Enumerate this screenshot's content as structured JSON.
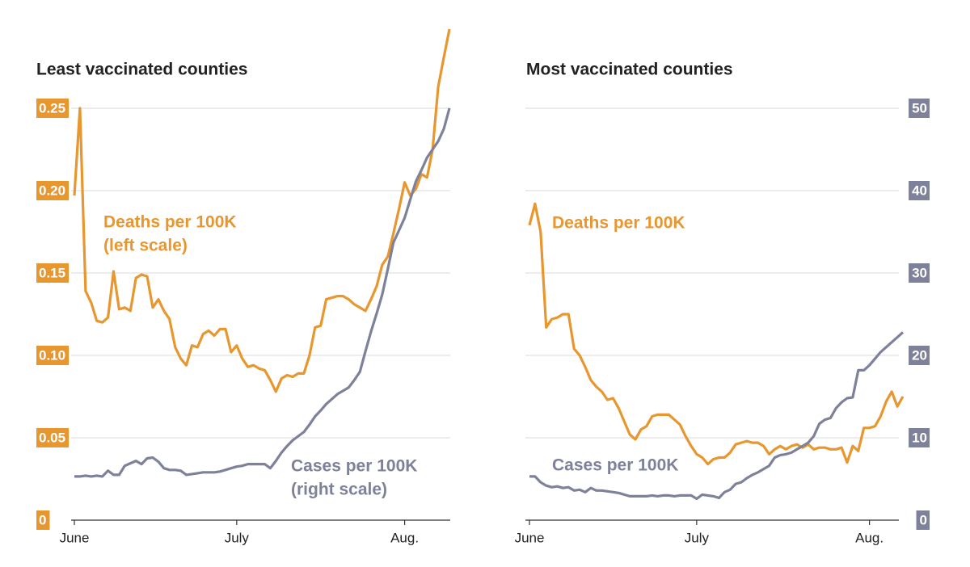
{
  "chart_data": [
    {
      "type": "line",
      "title": "Least vaccinated counties",
      "categories": [
        "June",
        null,
        null,
        null,
        null,
        null,
        null,
        null,
        null,
        null,
        null,
        null,
        null,
        null,
        null,
        null,
        null,
        null,
        null,
        null,
        null,
        null,
        null,
        null,
        null,
        null,
        null,
        null,
        null,
        "July",
        null,
        null,
        null,
        null,
        null,
        null,
        null,
        null,
        null,
        null,
        null,
        null,
        null,
        null,
        null,
        null,
        null,
        null,
        null,
        null,
        null,
        null,
        null,
        null,
        null,
        null,
        null,
        null,
        null,
        "Aug.",
        null,
        null,
        null,
        null,
        null,
        null,
        null,
        null
      ],
      "series": [
        {
          "name": "Deaths per 100K",
          "note": "(left scale)",
          "color": "#e8962e",
          "axis": "y",
          "values": [
            0.197,
            0.25,
            0.139,
            0.132,
            0.121,
            0.12,
            0.123,
            0.151,
            0.128,
            0.129,
            0.127,
            0.147,
            0.149,
            0.148,
            0.129,
            0.134,
            0.127,
            0.122,
            0.105,
            0.098,
            0.094,
            0.106,
            0.105,
            0.113,
            0.115,
            0.112,
            0.116,
            0.116,
            0.102,
            0.106,
            0.098,
            0.093,
            0.094,
            0.092,
            0.091,
            0.085,
            0.078,
            0.086,
            0.088,
            0.087,
            0.089,
            0.089,
            0.1,
            0.117,
            0.118,
            0.134,
            0.135,
            0.136,
            0.136,
            0.134,
            0.131,
            0.129,
            0.127,
            0.134,
            0.142,
            0.155,
            0.16,
            0.174,
            0.189,
            0.205,
            0.197,
            0.201,
            0.21,
            0.208,
            0.225,
            0.263,
            0.281,
            0.298
          ]
        },
        {
          "name": "Cases per 100K",
          "note": "(right scale)",
          "color": "#7d8199",
          "axis": "y2",
          "values": [
            5.3,
            5.3,
            5.4,
            5.3,
            5.4,
            5.3,
            6.0,
            5.5,
            5.5,
            6.6,
            6.9,
            7.2,
            6.8,
            7.5,
            7.6,
            7.1,
            6.3,
            6.1,
            6.1,
            6.0,
            5.5,
            5.6,
            5.7,
            5.8,
            5.8,
            5.8,
            5.9,
            6.1,
            6.3,
            6.5,
            6.6,
            6.8,
            6.8,
            6.8,
            6.8,
            6.3,
            7.2,
            8.2,
            9.0,
            9.7,
            10.2,
            10.7,
            11.6,
            12.6,
            13.3,
            14.1,
            14.7,
            15.3,
            15.7,
            16.1,
            17.0,
            18.0,
            20.5,
            22.9,
            25.1,
            27.4,
            30.5,
            33.7,
            35.2,
            36.7,
            38.9,
            41.1,
            42.5,
            44.0,
            45.0,
            46.0,
            47.5,
            50.0
          ]
        }
      ],
      "ylim": [
        0,
        0.3
      ],
      "yticks": [
        0,
        0.05,
        {
          "value": 0.1,
          "label": "0.10"
        },
        0.15,
        {
          "value": 0.2,
          "label": "0.20"
        },
        0.25
      ],
      "y2lim": [
        0,
        60
      ],
      "grid": true
    },
    {
      "type": "line",
      "title": "Most vaccinated counties",
      "categories": [
        "June",
        null,
        null,
        null,
        null,
        null,
        null,
        null,
        null,
        null,
        null,
        null,
        null,
        null,
        null,
        null,
        null,
        null,
        null,
        null,
        null,
        null,
        null,
        null,
        null,
        null,
        null,
        null,
        null,
        null,
        "July",
        null,
        null,
        null,
        null,
        null,
        null,
        null,
        null,
        null,
        null,
        null,
        null,
        null,
        null,
        null,
        null,
        null,
        null,
        null,
        null,
        null,
        null,
        null,
        null,
        null,
        null,
        null,
        null,
        null,
        null,
        "Aug.",
        null,
        null,
        null,
        null,
        null,
        null
      ],
      "series": [
        {
          "name": "Deaths per 100K",
          "color": "#e8962e",
          "axis": "y",
          "values": [
            0.179,
            0.192,
            0.175,
            0.117,
            0.122,
            0.123,
            0.125,
            0.125,
            0.104,
            0.1,
            0.093,
            0.085,
            0.081,
            0.078,
            0.073,
            0.074,
            0.068,
            0.06,
            0.052,
            0.049,
            0.055,
            0.057,
            0.063,
            0.064,
            0.064,
            0.064,
            0.061,
            0.058,
            0.051,
            0.045,
            0.04,
            0.038,
            0.034,
            0.037,
            0.038,
            0.038,
            0.041,
            0.046,
            0.047,
            0.048,
            0.047,
            0.047,
            0.045,
            0.04,
            0.043,
            0.045,
            0.043,
            0.045,
            0.046,
            0.044,
            0.046,
            0.043,
            0.044,
            0.044,
            0.043,
            0.043,
            0.044,
            0.035,
            0.045,
            0.042,
            0.056,
            0.056,
            0.057,
            0.063,
            0.072,
            0.078,
            0.069,
            0.075
          ]
        },
        {
          "name": "Cases per 100K",
          "color": "#7d8199",
          "axis": "y2",
          "values": [
            5.3,
            5.3,
            4.6,
            4.2,
            4.0,
            4.1,
            3.9,
            4.0,
            3.6,
            3.7,
            3.4,
            3.9,
            3.6,
            3.6,
            3.5,
            3.4,
            3.3,
            3.1,
            2.9,
            2.9,
            2.9,
            2.9,
            3.0,
            2.9,
            3.0,
            3.0,
            2.9,
            3.0,
            3.0,
            3.0,
            2.6,
            3.1,
            3.0,
            2.9,
            2.7,
            3.4,
            3.7,
            4.4,
            4.6,
            5.1,
            5.5,
            5.8,
            6.2,
            6.6,
            7.6,
            7.9,
            8.0,
            8.2,
            8.6,
            9.0,
            9.4,
            10.2,
            11.7,
            12.2,
            12.4,
            13.6,
            14.3,
            14.8,
            14.9,
            18.2,
            18.2,
            18.8,
            19.6,
            20.4,
            21.0,
            21.6,
            22.2,
            22.8
          ]
        }
      ],
      "ylim": [
        0,
        0.3
      ],
      "y2lim": [
        0,
        60
      ],
      "y2ticks": [
        0,
        10,
        20,
        30,
        40,
        50
      ],
      "grid": true
    }
  ]
}
